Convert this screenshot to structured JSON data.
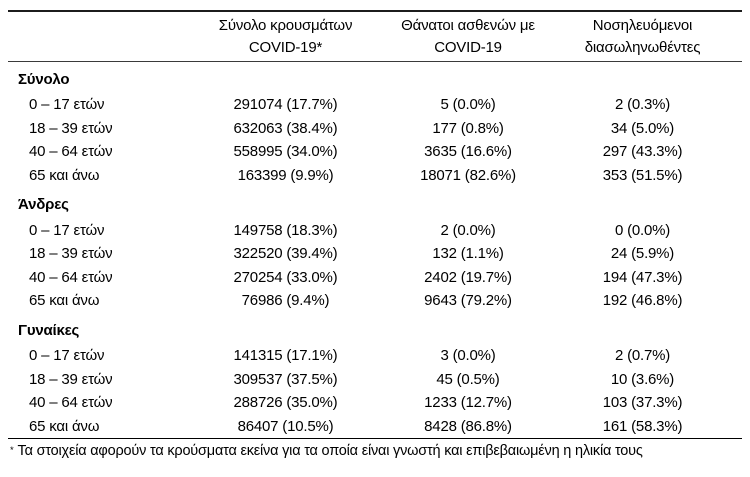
{
  "header": {
    "col_cases": {
      "line1": "Σύνολο κρουσμάτων",
      "line2": "COVID-19*"
    },
    "col_deaths": {
      "line1": "Θάνατοι ασθενών με",
      "line2": "COVID-19"
    },
    "col_intubated": {
      "line1": "Νοσηλευόμενοι",
      "line2": "διασωληνωθέντες"
    }
  },
  "sections": [
    {
      "title": "Σύνολο",
      "rows": [
        {
          "label": "0 – 17 ετών",
          "cases": "291074 (17.7%)",
          "deaths": "5 (0.0%)",
          "intubated": "2 (0.3%)"
        },
        {
          "label": "18 – 39 ετών",
          "cases": "632063 (38.4%)",
          "deaths": "177 (0.8%)",
          "intubated": "34 (5.0%)"
        },
        {
          "label": "40 – 64 ετών",
          "cases": "558995 (34.0%)",
          "deaths": "3635 (16.6%)",
          "intubated": "297 (43.3%)"
        },
        {
          "label": "65 και άνω",
          "cases": "163399 (9.9%)",
          "deaths": "18071 (82.6%)",
          "intubated": "353 (51.5%)"
        }
      ]
    },
    {
      "title": "Άνδρες",
      "rows": [
        {
          "label": "0 – 17 ετών",
          "cases": "149758 (18.3%)",
          "deaths": "2 (0.0%)",
          "intubated": "0 (0.0%)"
        },
        {
          "label": "18 – 39 ετών",
          "cases": "322520 (39.4%)",
          "deaths": "132 (1.1%)",
          "intubated": "24 (5.9%)"
        },
        {
          "label": "40 – 64 ετών",
          "cases": "270254 (33.0%)",
          "deaths": "2402 (19.7%)",
          "intubated": "194 (47.3%)"
        },
        {
          "label": "65 και άνω",
          "cases": "76986 (9.4%)",
          "deaths": "9643 (79.2%)",
          "intubated": "192 (46.8%)"
        }
      ]
    },
    {
      "title": "Γυναίκες",
      "rows": [
        {
          "label": "0 – 17 ετών",
          "cases": "141315 (17.1%)",
          "deaths": "3 (0.0%)",
          "intubated": "2 (0.7%)"
        },
        {
          "label": "18 – 39 ετών",
          "cases": "309537 (37.5%)",
          "deaths": "45 (0.5%)",
          "intubated": "10 (3.6%)"
        },
        {
          "label": "40 – 64 ετών",
          "cases": "288726 (35.0%)",
          "deaths": "1233 (12.7%)",
          "intubated": "103 (37.3%)"
        },
        {
          "label": "65 και άνω",
          "cases": "86407 (10.5%)",
          "deaths": "8428 (86.8%)",
          "intubated": "161 (58.3%)"
        }
      ]
    }
  ],
  "footnote": {
    "marker": "*",
    "text": "Τα στοιχεία αφορούν τα κρούσματα εκείνα για τα οποία είναι γνωστή και επιβεβαιωμένη η ηλικία τους"
  }
}
